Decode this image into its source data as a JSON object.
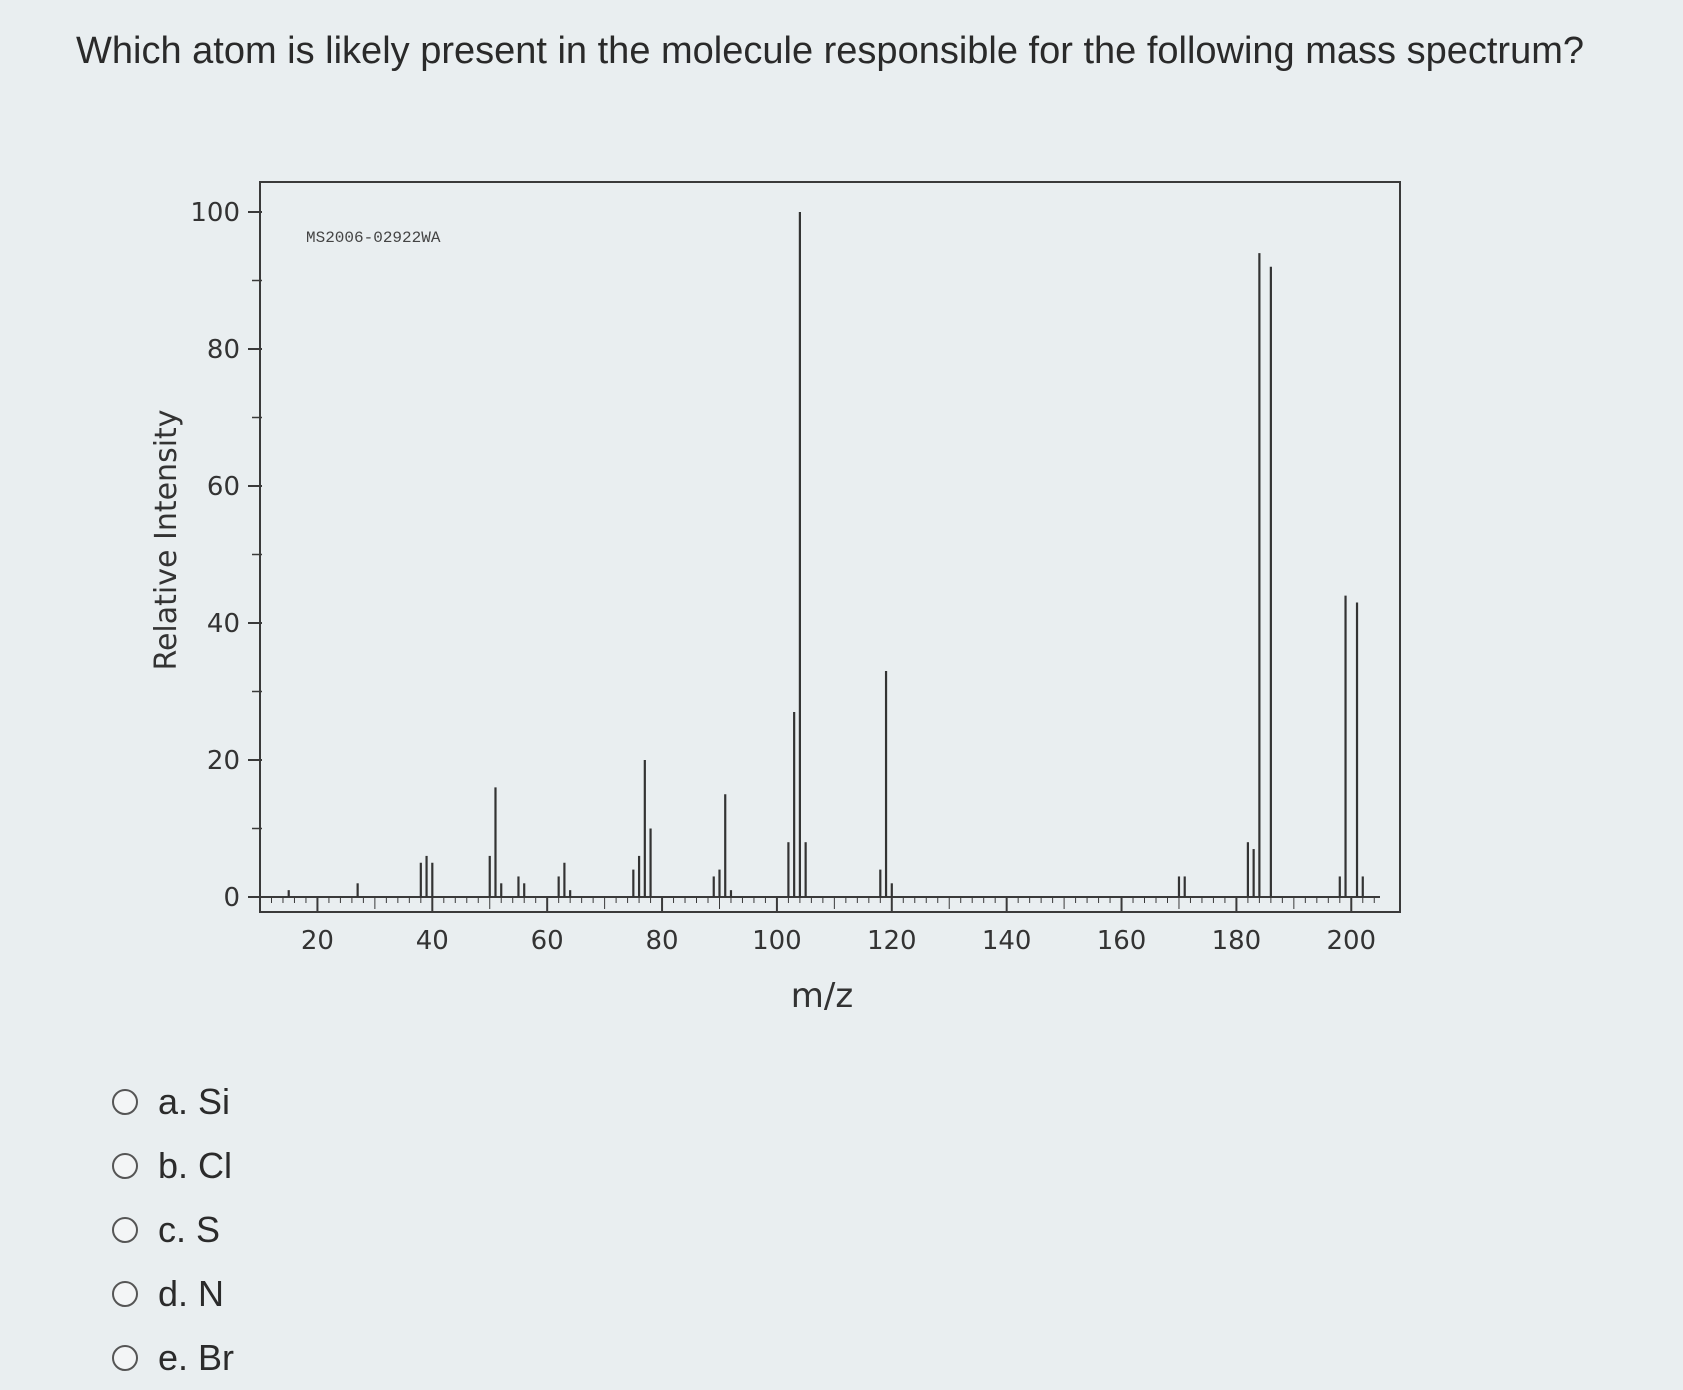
{
  "question": {
    "text": "Which atom is likely present in the molecule responsible for the following mass spectrum?"
  },
  "options": [
    {
      "label": "a. Si"
    },
    {
      "label": "b. Cl"
    },
    {
      "label": "c. S"
    },
    {
      "label": "d. N"
    },
    {
      "label": "e. Br"
    }
  ],
  "chart_data": {
    "type": "bar",
    "annotation": "MS2006-02922WA",
    "xlabel": "m/z",
    "ylabel": "Relative Intensity",
    "xlim": [
      10,
      205
    ],
    "ylim": [
      0,
      100
    ],
    "x_ticks": [
      20,
      40,
      60,
      80,
      100,
      120,
      140,
      160,
      180,
      200
    ],
    "y_ticks": [
      0,
      20,
      40,
      60,
      80,
      100
    ],
    "grid": false,
    "bar_color": "#333333",
    "peaks": [
      {
        "mz": 15,
        "intensity": 1
      },
      {
        "mz": 27,
        "intensity": 2
      },
      {
        "mz": 38,
        "intensity": 5
      },
      {
        "mz": 39,
        "intensity": 6
      },
      {
        "mz": 40,
        "intensity": 5
      },
      {
        "mz": 50,
        "intensity": 6
      },
      {
        "mz": 51,
        "intensity": 16
      },
      {
        "mz": 52,
        "intensity": 2
      },
      {
        "mz": 55,
        "intensity": 3
      },
      {
        "mz": 56,
        "intensity": 2
      },
      {
        "mz": 62,
        "intensity": 3
      },
      {
        "mz": 63,
        "intensity": 5
      },
      {
        "mz": 64,
        "intensity": 1
      },
      {
        "mz": 75,
        "intensity": 4
      },
      {
        "mz": 76,
        "intensity": 6
      },
      {
        "mz": 77,
        "intensity": 20
      },
      {
        "mz": 78,
        "intensity": 10
      },
      {
        "mz": 89,
        "intensity": 3
      },
      {
        "mz": 90,
        "intensity": 4
      },
      {
        "mz": 91,
        "intensity": 15
      },
      {
        "mz": 92,
        "intensity": 1
      },
      {
        "mz": 102,
        "intensity": 8
      },
      {
        "mz": 103,
        "intensity": 27
      },
      {
        "mz": 104,
        "intensity": 100
      },
      {
        "mz": 105,
        "intensity": 8
      },
      {
        "mz": 118,
        "intensity": 4
      },
      {
        "mz": 119,
        "intensity": 33
      },
      {
        "mz": 120,
        "intensity": 2
      },
      {
        "mz": 170,
        "intensity": 3
      },
      {
        "mz": 171,
        "intensity": 3
      },
      {
        "mz": 182,
        "intensity": 8
      },
      {
        "mz": 183,
        "intensity": 7
      },
      {
        "mz": 184,
        "intensity": 94
      },
      {
        "mz": 186,
        "intensity": 92
      },
      {
        "mz": 198,
        "intensity": 3
      },
      {
        "mz": 199,
        "intensity": 44
      },
      {
        "mz": 201,
        "intensity": 43
      },
      {
        "mz": 202,
        "intensity": 3
      }
    ]
  }
}
